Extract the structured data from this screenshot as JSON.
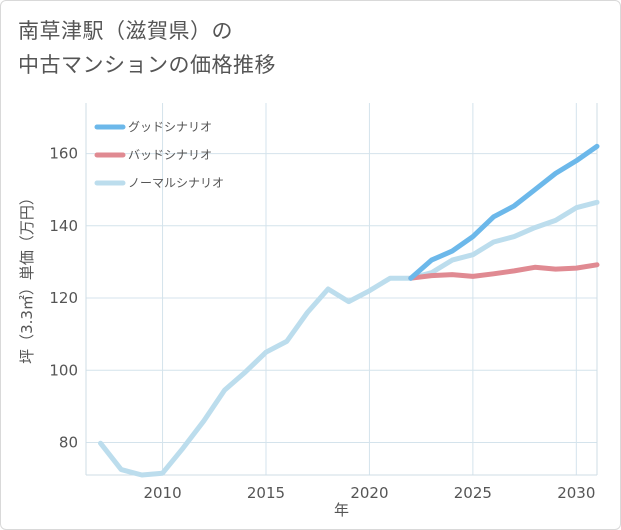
{
  "title_line1": "南草津駅（滋賀県）の",
  "title_line2": "中古マンションの価格推移",
  "chart_data": {
    "type": "line",
    "xlabel": "年",
    "ylabel": "坪（3.3㎡）単価（万円）",
    "xlim": [
      2006.3,
      2031
    ],
    "ylim": [
      71,
      174
    ],
    "xticks": [
      2010,
      2015,
      2020,
      2025,
      2030
    ],
    "yticks": [
      80,
      100,
      120,
      140,
      160
    ],
    "grid": true,
    "legend_position": "top-left",
    "series": [
      {
        "name": "グッドシナリオ",
        "color": "#6cb8ea",
        "x": [
          2022,
          2023,
          2024,
          2025,
          2026,
          2027,
          2028,
          2029,
          2030,
          2031
        ],
        "y": [
          125.5,
          130.5,
          133.0,
          137.0,
          142.5,
          145.5,
          150.0,
          154.5,
          158.0,
          162.0
        ]
      },
      {
        "name": "バッドシナリオ",
        "color": "#e08a92",
        "x": [
          2022,
          2023,
          2024,
          2025,
          2026,
          2027,
          2028,
          2029,
          2030,
          2031
        ],
        "y": [
          125.5,
          126.2,
          126.5,
          126.0,
          126.7,
          127.5,
          128.5,
          128.0,
          128.3,
          129.2
        ]
      },
      {
        "name": "ノーマルシナリオ",
        "color": "#bcdded",
        "x": [
          2007,
          2008,
          2009,
          2010,
          2011,
          2012,
          2013,
          2014,
          2015,
          2016,
          2017,
          2018,
          2019,
          2020,
          2021,
          2022,
          2023,
          2024,
          2025,
          2026,
          2027,
          2028,
          2029,
          2030,
          2031
        ],
        "y": [
          79.8,
          72.5,
          71.0,
          71.5,
          78.5,
          86.0,
          94.5,
          99.5,
          105.0,
          108.0,
          116.0,
          122.5,
          119.0,
          122.0,
          125.5,
          125.5,
          127.0,
          130.5,
          132.0,
          135.5,
          137.0,
          139.5,
          141.5,
          145.0,
          146.5
        ]
      }
    ]
  }
}
